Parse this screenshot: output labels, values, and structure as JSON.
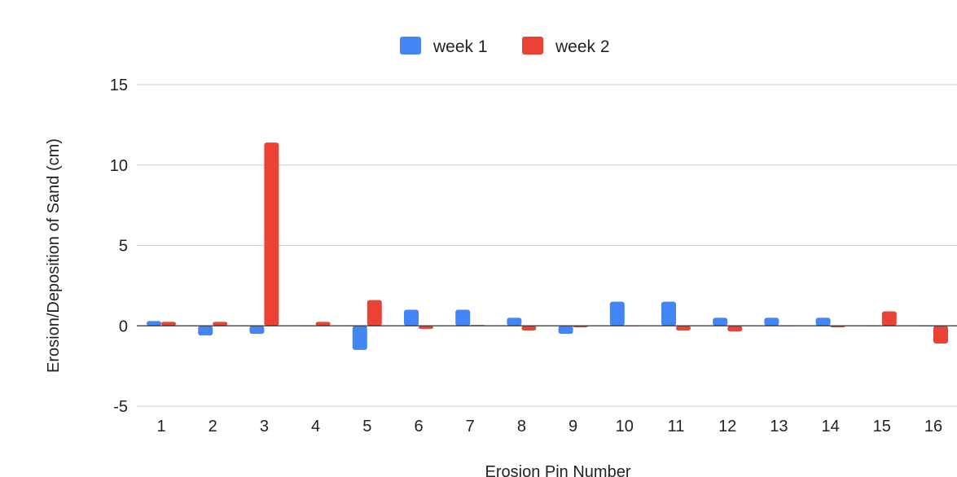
{
  "chart_data": {
    "type": "bar",
    "xlabel": "Erosion Pin Number",
    "ylabel": "Erosion/Deposition of Sand (cm)",
    "categories": [
      "1",
      "2",
      "3",
      "4",
      "5",
      "6",
      "7",
      "8",
      "9",
      "10",
      "11",
      "12",
      "13",
      "14",
      "15",
      "16"
    ],
    "series": [
      {
        "name": "week 1",
        "color": "#4285f4",
        "values": [
          0.3,
          -0.6,
          -0.5,
          0,
          -1.5,
          1.0,
          1.0,
          0.5,
          -0.5,
          1.5,
          1.5,
          0.5,
          0.5,
          0.5,
          0,
          0
        ]
      },
      {
        "name": "week 2",
        "color": "#ea4335",
        "values": [
          0.25,
          0.25,
          11.4,
          0.25,
          1.6,
          -0.2,
          0.05,
          -0.3,
          -0.1,
          0,
          -0.3,
          -0.35,
          0,
          -0.1,
          0.9,
          -1.1
        ]
      }
    ],
    "ylim": [
      -5,
      15
    ],
    "yticks": [
      "-5",
      "0",
      "5",
      "10",
      "15"
    ],
    "grid": true,
    "legend": "top"
  }
}
